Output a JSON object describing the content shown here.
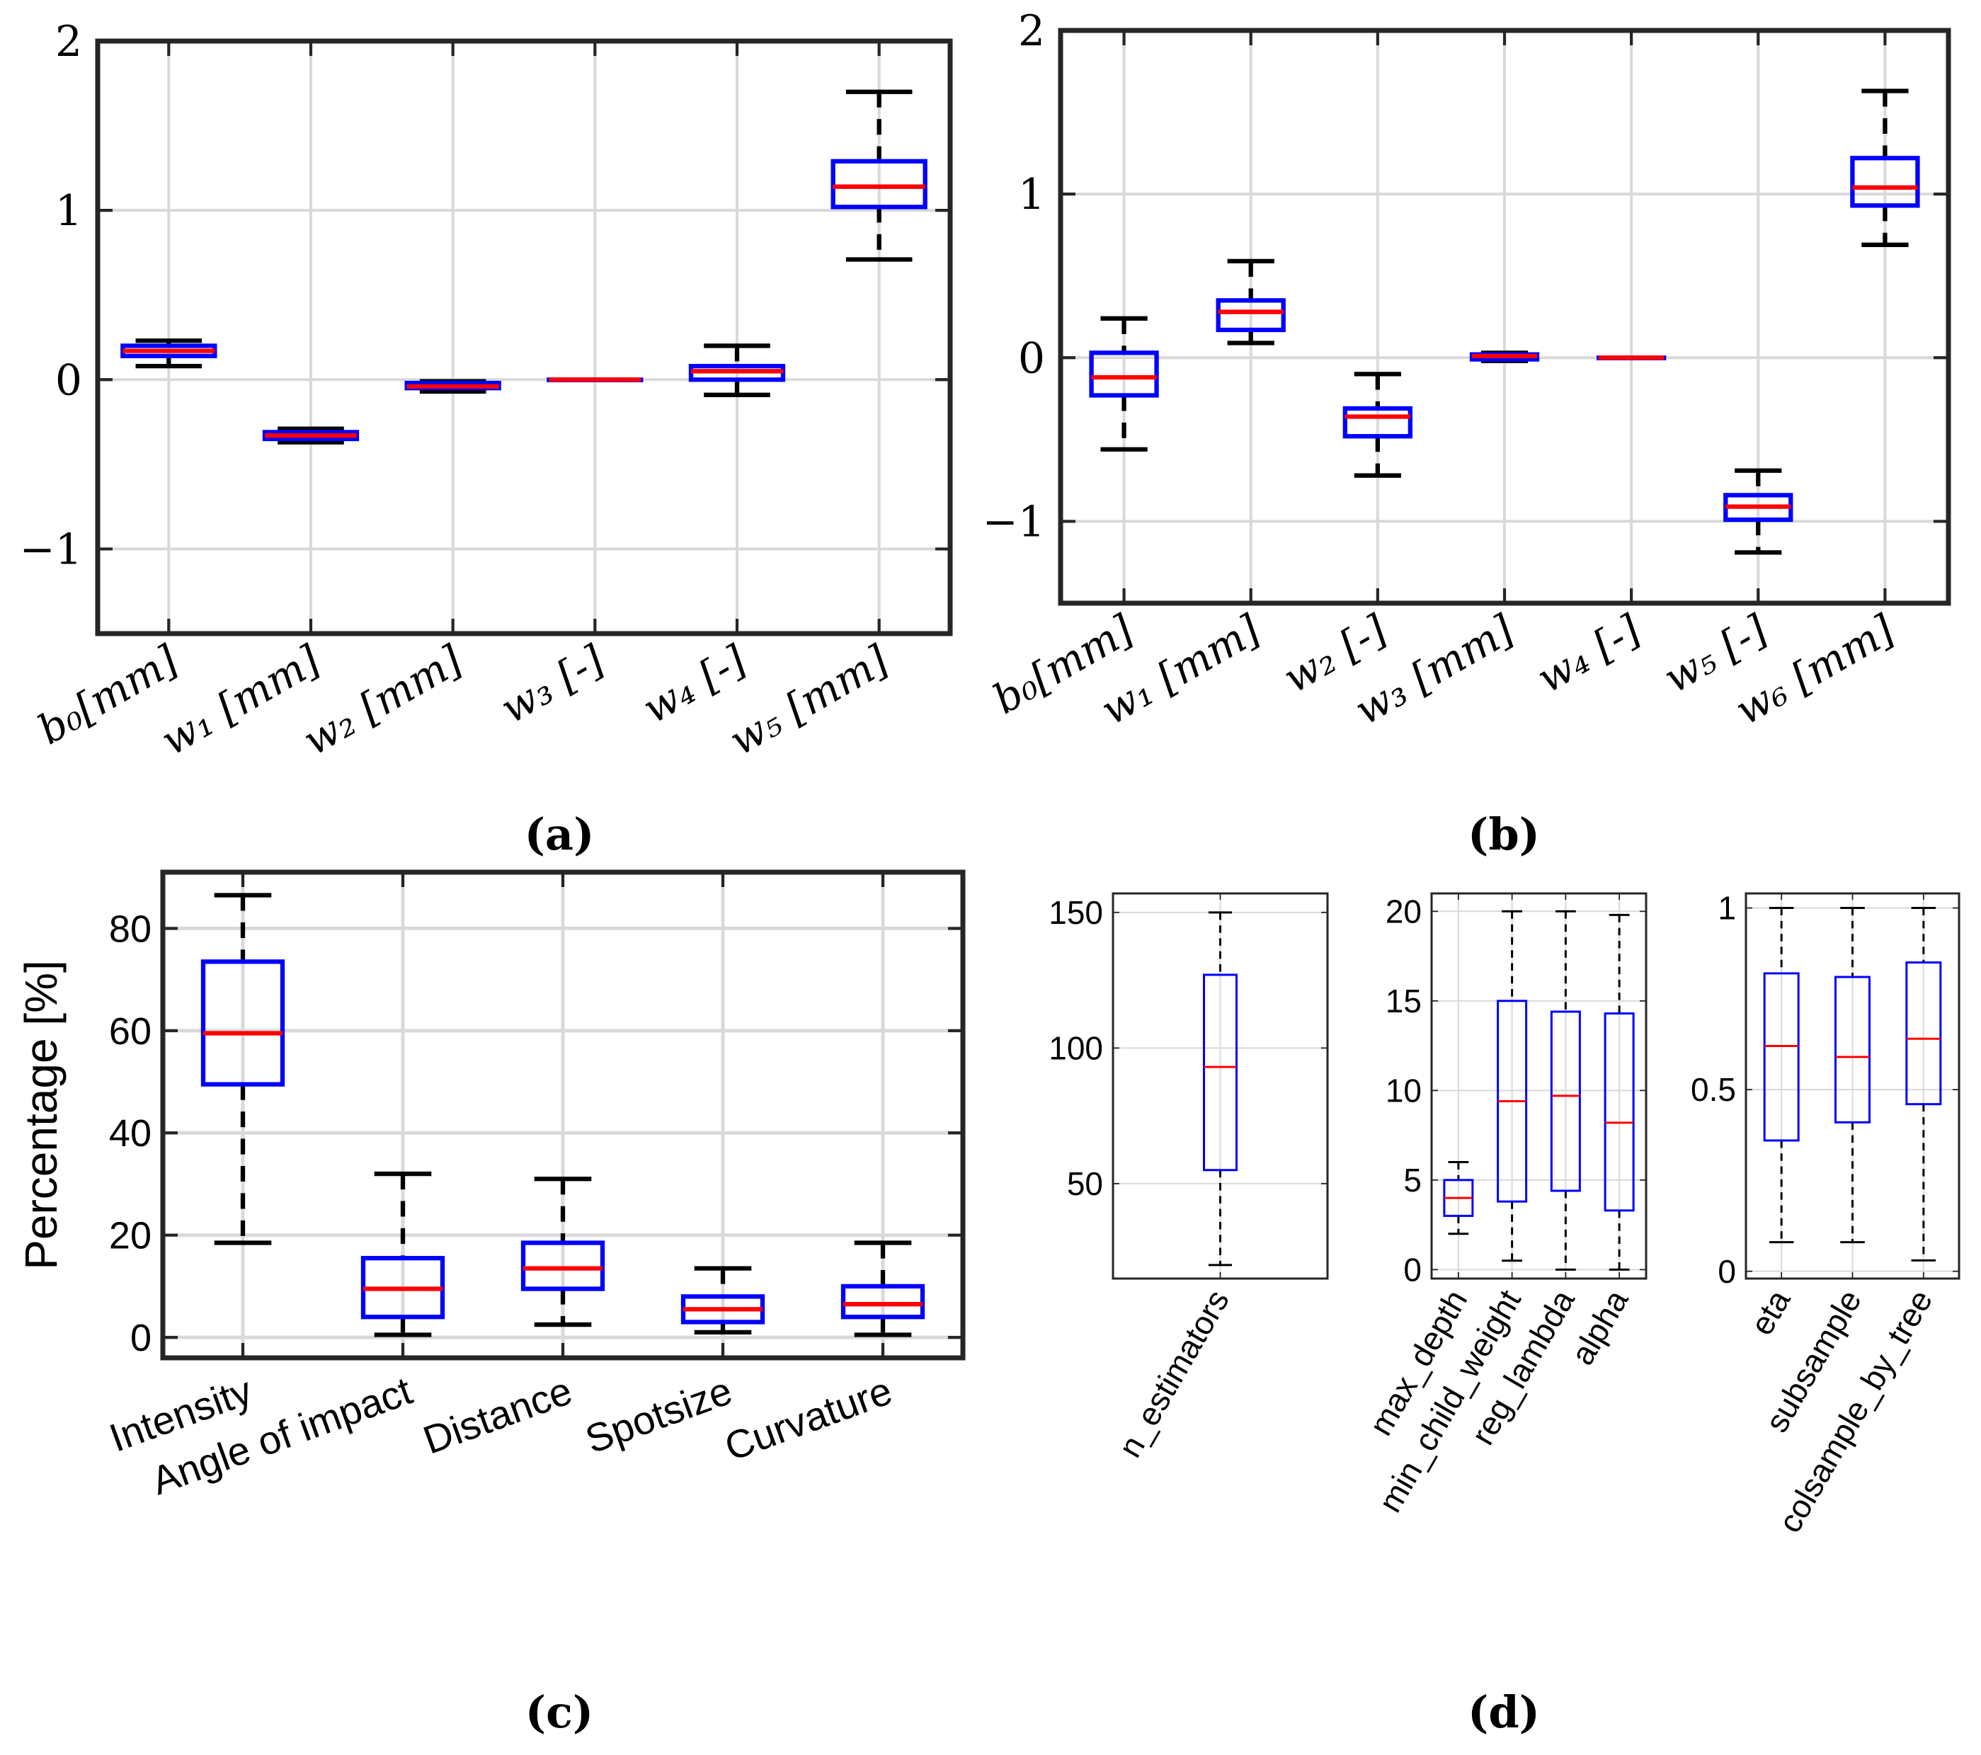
{
  "figure": {
    "panel_captions": [
      "(a)",
      "(b)",
      "(c)",
      "(d)"
    ]
  },
  "colors": {
    "box": "#0000ff",
    "median": "#ff0000",
    "whisker": "#000000",
    "grid": "#d9d9d9",
    "axes": "#262626"
  },
  "chart_data": [
    {
      "id": "a",
      "type": "box",
      "caption": "(a)",
      "ylim": [
        -1.5,
        2
      ],
      "yticks": [
        -1,
        0,
        1,
        2
      ],
      "ytick_labels": [
        "−1",
        "0",
        "1",
        "2"
      ],
      "grid": true,
      "categories": [
        "b₀[mm]",
        "w₁ [mm]",
        "w₂ [mm]",
        "w₃ [-]",
        "w₄ [-]",
        "w₅ [mm]"
      ],
      "boxes": [
        {
          "min": 0.08,
          "q1": 0.14,
          "median": 0.17,
          "q3": 0.2,
          "max": 0.23
        },
        {
          "min": -0.37,
          "q1": -0.35,
          "median": -0.33,
          "q3": -0.31,
          "max": -0.29
        },
        {
          "min": -0.07,
          "q1": -0.05,
          "median": -0.04,
          "q3": -0.02,
          "max": -0.01
        },
        {
          "min": 0.0,
          "q1": 0.0,
          "median": 0.0,
          "q3": 0.0,
          "max": 0.0
        },
        {
          "min": -0.09,
          "q1": 0.0,
          "median": 0.05,
          "q3": 0.08,
          "max": 0.2
        },
        {
          "min": 0.71,
          "q1": 1.02,
          "median": 1.14,
          "q3": 1.29,
          "max": 1.7
        }
      ]
    },
    {
      "id": "b",
      "type": "box",
      "caption": "(b)",
      "ylim": [
        -1.5,
        2
      ],
      "yticks": [
        -1,
        0,
        1,
        2
      ],
      "ytick_labels": [
        "−1",
        "0",
        "1",
        "2"
      ],
      "grid": true,
      "categories": [
        "b₀[mm]",
        "w₁ [mm]",
        "w₂ [-]",
        "w₃ [mm]",
        "w₄ [-]",
        "w₅ [-]",
        "w₆ [mm]"
      ],
      "boxes": [
        {
          "min": -0.56,
          "q1": -0.23,
          "median": -0.12,
          "q3": 0.03,
          "max": 0.24
        },
        {
          "min": 0.09,
          "q1": 0.17,
          "median": 0.28,
          "q3": 0.35,
          "max": 0.59
        },
        {
          "min": -0.72,
          "q1": -0.48,
          "median": -0.36,
          "q3": -0.31,
          "max": -0.1
        },
        {
          "min": -0.02,
          "q1": -0.01,
          "median": 0.01,
          "q3": 0.02,
          "max": 0.03
        },
        {
          "min": 0.0,
          "q1": 0.0,
          "median": 0.0,
          "q3": 0.0,
          "max": 0.0
        },
        {
          "min": -1.19,
          "q1": -0.99,
          "median": -0.91,
          "q3": -0.84,
          "max": -0.69
        },
        {
          "min": 0.69,
          "q1": 0.93,
          "median": 1.04,
          "q3": 1.22,
          "max": 1.63
        }
      ]
    },
    {
      "id": "c",
      "type": "box",
      "caption": "(c)",
      "ylabel": "Percentage [%]",
      "ylim": [
        -4,
        91
      ],
      "yticks": [
        0,
        20,
        40,
        60,
        80
      ],
      "ytick_labels": [
        "0",
        "20",
        "40",
        "60",
        "80"
      ],
      "grid": true,
      "categories": [
        "Intensity",
        "Angle of impact",
        "Distance",
        "Spotsize",
        "Curvature"
      ],
      "boxes": [
        {
          "min": 18.5,
          "q1": 49.5,
          "median": 59.5,
          "q3": 73.5,
          "max": 86.5
        },
        {
          "min": 0.5,
          "q1": 4.0,
          "median": 9.5,
          "q3": 15.5,
          "max": 32.0
        },
        {
          "min": 2.5,
          "q1": 9.5,
          "median": 13.5,
          "q3": 18.5,
          "max": 31.0
        },
        {
          "min": 1.0,
          "q1": 3.0,
          "median": 5.5,
          "q3": 8.0,
          "max": 13.5
        },
        {
          "min": 0.5,
          "q1": 4.0,
          "median": 6.5,
          "q3": 10.0,
          "max": 18.5
        }
      ]
    },
    {
      "id": "d1",
      "type": "box",
      "group": "(d)",
      "ylim": [
        15,
        157
      ],
      "yticks": [
        50,
        100,
        150
      ],
      "ytick_labels": [
        "50",
        "100",
        "150"
      ],
      "grid": true,
      "categories": [
        "n_estimators"
      ],
      "boxes": [
        {
          "min": 20,
          "q1": 55,
          "median": 93,
          "q3": 127,
          "max": 150
        }
      ]
    },
    {
      "id": "d2",
      "type": "box",
      "group": "(d)",
      "ylim": [
        -0.5,
        21
      ],
      "yticks": [
        0,
        5,
        10,
        15,
        20
      ],
      "ytick_labels": [
        "0",
        "5",
        "10",
        "15",
        "20"
      ],
      "grid": true,
      "categories": [
        "max_depth",
        "min_child_weight",
        "reg_lambda",
        "alpha"
      ],
      "boxes": [
        {
          "min": 2.0,
          "q1": 3.0,
          "median": 4.0,
          "q3": 5.0,
          "max": 6.0
        },
        {
          "min": 0.5,
          "q1": 3.8,
          "median": 9.4,
          "q3": 15.0,
          "max": 20.0
        },
        {
          "min": 0.0,
          "q1": 4.4,
          "median": 9.7,
          "q3": 14.4,
          "max": 20.0
        },
        {
          "min": 0.0,
          "q1": 3.3,
          "median": 8.2,
          "q3": 14.3,
          "max": 19.8
        }
      ]
    },
    {
      "id": "d3",
      "type": "box",
      "group": "(d)",
      "ylim": [
        -0.02,
        1.04
      ],
      "yticks": [
        0,
        0.5,
        1
      ],
      "ytick_labels": [
        "0",
        "0.5",
        "1"
      ],
      "grid": true,
      "categories": [
        "eta",
        "subsample",
        "colsample_by_tree"
      ],
      "boxes": [
        {
          "min": 0.08,
          "q1": 0.36,
          "median": 0.62,
          "q3": 0.82,
          "max": 1.0
        },
        {
          "min": 0.08,
          "q1": 0.41,
          "median": 0.59,
          "q3": 0.81,
          "max": 1.0
        },
        {
          "min": 0.03,
          "q1": 0.46,
          "median": 0.64,
          "q3": 0.85,
          "max": 1.0
        }
      ]
    }
  ]
}
